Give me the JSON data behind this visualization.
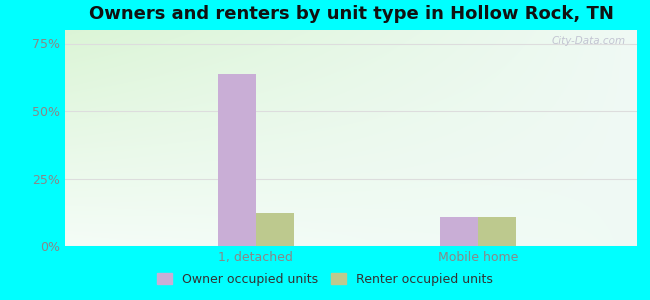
{
  "title": "Owners and renters by unit type in Hollow Rock, TN",
  "categories": [
    "1, detached",
    "Mobile home"
  ],
  "owner_values": [
    63.6,
    10.9
  ],
  "renter_values": [
    12.1,
    10.9
  ],
  "owner_color": "#c9aed6",
  "renter_color": "#bdc98e",
  "yticks": [
    0,
    25,
    50,
    75
  ],
  "ytick_labels": [
    "0%",
    "25%",
    "50%",
    "75%"
  ],
  "ylim": [
    0,
    80
  ],
  "outer_bg": "#00ffff",
  "watermark": "City-Data.com",
  "legend_labels": [
    "Owner occupied units",
    "Renter occupied units"
  ],
  "bar_width": 0.12,
  "title_fontsize": 13,
  "grid_color": "#dddddd",
  "tick_color": "#888888",
  "tick_fontsize": 9
}
